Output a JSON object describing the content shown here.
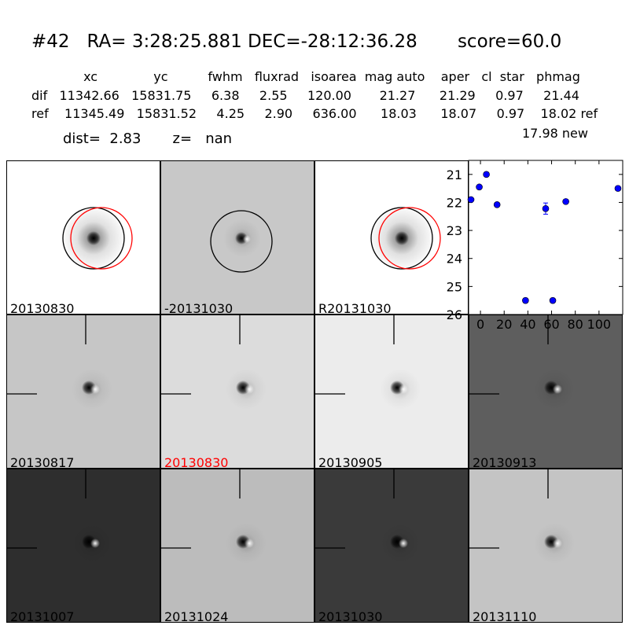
{
  "header": {
    "title": "#42   RA= 3:28:25.881 DEC=-28:12:36.28       score=60.0",
    "columns": "             xc              yc          fwhm   fluxrad   isoarea  mag auto    aper   cl  star   phmag",
    "dif_row": "dif   11342.66   15831.75     6.38     2.55     120.00       21.27      21.29     0.97     21.44",
    "ref_row": "ref    11345.49   15831.52     4.25     2.90     636.00      18.03      18.07     0.97    18.02 ref",
    "new_row": "17.98 new",
    "dist_row": "dist=  2.83       z=   nan"
  },
  "panels": [
    {
      "label": "20130830",
      "bg": "#ffffff",
      "label_color": "#000000",
      "kind": "reference"
    },
    {
      "label": "-20131030",
      "bg": "#c8c8c8",
      "label_color": "#000000",
      "kind": "difference"
    },
    {
      "label": "R20131030",
      "bg": "#ffffff",
      "label_color": "#000000",
      "kind": "reference"
    },
    {
      "label": "20130817",
      "bg": "#c6c6c6",
      "label_color": "#000000",
      "kind": "epoch"
    },
    {
      "label": "20130830",
      "bg": "#dcdcdc",
      "label_color": "#ff0000",
      "kind": "epoch"
    },
    {
      "label": "20130905",
      "bg": "#ececec",
      "label_color": "#000000",
      "kind": "epoch"
    },
    {
      "label": "20130913",
      "bg": "#5e5e5e",
      "label_color": "#000000",
      "kind": "epoch"
    },
    {
      "label": "20131007",
      "bg": "#2e2e2e",
      "label_color": "#000000",
      "kind": "epoch"
    },
    {
      "label": "20131024",
      "bg": "#bcbcbc",
      "label_color": "#000000",
      "kind": "epoch"
    },
    {
      "label": "20131030",
      "bg": "#3a3a3a",
      "label_color": "#000000",
      "kind": "epoch"
    },
    {
      "label": "20131110",
      "bg": "#c4c4c4",
      "label_color": "#000000",
      "kind": "epoch"
    }
  ],
  "colors": {
    "ring_black": "#000000",
    "ring_red": "#ff0000",
    "points": "#0000ff"
  },
  "chart_data": {
    "type": "scatter",
    "title": "",
    "xlabel": "",
    "ylabel": "",
    "xlim": [
      -10,
      120
    ],
    "ylim": [
      26,
      20.5
    ],
    "y_inverted": true,
    "xticks": [
      0,
      20,
      40,
      60,
      80,
      100
    ],
    "yticks": [
      21,
      22,
      23,
      24,
      25,
      26
    ],
    "points": [
      {
        "x": -8,
        "y": 21.9,
        "err": 0.05
      },
      {
        "x": -1,
        "y": 21.45,
        "err": 0.05
      },
      {
        "x": 5,
        "y": 21.0,
        "err": 0.04
      },
      {
        "x": 14,
        "y": 22.08,
        "err": 0.06
      },
      {
        "x": 38,
        "y": 25.5,
        "err": 0.08
      },
      {
        "x": 55,
        "y": 22.22,
        "err": 0.2
      },
      {
        "x": 61,
        "y": 25.5,
        "err": 0.08
      },
      {
        "x": 72,
        "y": 21.97,
        "err": 0.06
      },
      {
        "x": 116,
        "y": 21.5,
        "err": 0.08
      }
    ]
  }
}
